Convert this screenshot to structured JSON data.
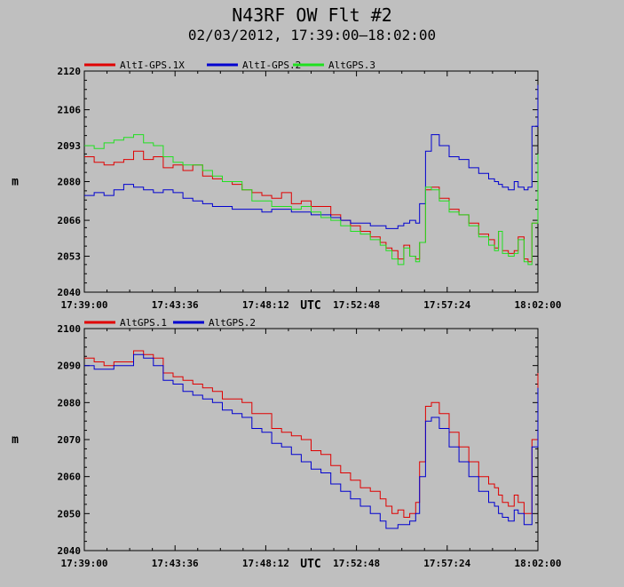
{
  "title": "N43RF OW Flt #2",
  "subtitle": "02/03/2012, 17:39:00–18:02:00",
  "chart_data": [
    {
      "type": "line",
      "ylabel": "m",
      "xlabel": "UTC",
      "ylim": [
        2040,
        2120
      ],
      "yticks": [
        "2040",
        "2053",
        "2066",
        "2080",
        "2093",
        "2106",
        "2120"
      ],
      "xticks": [
        "17:39:00",
        "17:43:36",
        "17:48:12",
        "17:52:48",
        "17:57:24",
        "18:02:00"
      ],
      "xrange_min": [
        0,
        23
      ],
      "series": [
        {
          "name": "AltI-GPS.1X",
          "color": "#e00000",
          "t": [
            0,
            0.5,
            1,
            1.5,
            2,
            2.5,
            3,
            3.5,
            4,
            4.5,
            5,
            5.5,
            6,
            6.5,
            7,
            7.5,
            8,
            8.5,
            9,
            9.5,
            10,
            10.5,
            11,
            11.5,
            12,
            12.5,
            13,
            13.5,
            14,
            14.5,
            15,
            15.3,
            15.6,
            15.9,
            16.2,
            16.5,
            16.8,
            17,
            17.3,
            17.6,
            18,
            18.5,
            19,
            19.5,
            20,
            20.5,
            20.8,
            21,
            21.2,
            21.5,
            21.8,
            22,
            22.3,
            22.5,
            22.7,
            23
          ],
          "y": [
            2089,
            2087,
            2086,
            2087,
            2088,
            2091,
            2088,
            2089,
            2085,
            2086,
            2084,
            2086,
            2082,
            2081,
            2080,
            2079,
            2077,
            2076,
            2075,
            2074,
            2076,
            2072,
            2073,
            2071,
            2071,
            2068,
            2066,
            2064,
            2062,
            2060,
            2058,
            2056,
            2055,
            2052,
            2057,
            2053,
            2052,
            2058,
            2077,
            2078,
            2074,
            2070,
            2068,
            2065,
            2061,
            2059,
            2056,
            2062,
            2055,
            2054,
            2055,
            2060,
            2052,
            2051,
            2065,
            2089
          ]
        },
        {
          "name": "AltI-GPS.2",
          "color": "#0000d0",
          "t": [
            0,
            0.5,
            1,
            1.5,
            2,
            2.5,
            3,
            3.5,
            4,
            4.5,
            5,
            5.5,
            6,
            6.5,
            7,
            7.5,
            8,
            8.5,
            9,
            9.5,
            10,
            10.5,
            11,
            11.5,
            12,
            12.5,
            13,
            13.5,
            14,
            14.5,
            15,
            15.3,
            15.6,
            15.9,
            16.2,
            16.5,
            16.8,
            17,
            17.3,
            17.6,
            18,
            18.5,
            19,
            19.5,
            20,
            20.5,
            20.8,
            21,
            21.2,
            21.5,
            21.8,
            22,
            22.3,
            22.5,
            22.7,
            23
          ],
          "y": [
            2075,
            2076,
            2075,
            2077,
            2079,
            2078,
            2077,
            2076,
            2077,
            2076,
            2074,
            2073,
            2072,
            2071,
            2071,
            2070,
            2070,
            2070,
            2069,
            2070,
            2070,
            2069,
            2069,
            2068,
            2068,
            2067,
            2066,
            2065,
            2065,
            2064,
            2064,
            2063,
            2063,
            2064,
            2065,
            2066,
            2065,
            2072,
            2091,
            2097,
            2093,
            2089,
            2088,
            2085,
            2083,
            2081,
            2080,
            2079,
            2078,
            2077,
            2080,
            2078,
            2077,
            2078,
            2100,
            2115
          ]
        },
        {
          "name": "AltGPS.3",
          "color": "#20e020",
          "t": [
            0,
            0.5,
            1,
            1.5,
            2,
            2.5,
            3,
            3.5,
            4,
            4.5,
            5,
            5.5,
            6,
            6.5,
            7,
            7.5,
            8,
            8.5,
            9,
            9.5,
            10,
            10.5,
            11,
            11.5,
            12,
            12.5,
            13,
            13.5,
            14,
            14.5,
            15,
            15.3,
            15.6,
            15.9,
            16.2,
            16.5,
            16.8,
            17,
            17.3,
            17.6,
            18,
            18.5,
            19,
            19.5,
            20,
            20.5,
            20.8,
            21,
            21.2,
            21.5,
            21.8,
            22,
            22.3,
            22.5,
            22.7,
            23
          ],
          "y": [
            2093,
            2092,
            2094,
            2095,
            2096,
            2097,
            2094,
            2093,
            2089,
            2087,
            2086,
            2086,
            2084,
            2082,
            2080,
            2080,
            2077,
            2073,
            2073,
            2071,
            2071,
            2070,
            2071,
            2069,
            2067,
            2066,
            2064,
            2062,
            2061,
            2059,
            2057,
            2055,
            2052,
            2050,
            2056,
            2053,
            2051,
            2058,
            2078,
            2077,
            2073,
            2069,
            2068,
            2064,
            2060,
            2057,
            2055,
            2062,
            2054,
            2053,
            2054,
            2059,
            2051,
            2050,
            2065,
            2090
          ]
        }
      ]
    },
    {
      "type": "line",
      "ylabel": "m",
      "xlabel": "UTC",
      "ylim": [
        2040,
        2100
      ],
      "yticks": [
        "2040",
        "2050",
        "2060",
        "2070",
        "2080",
        "2090",
        "2100"
      ],
      "xticks": [
        "17:39:00",
        "17:43:36",
        "17:48:12",
        "17:52:48",
        "17:57:24",
        "18:02:00"
      ],
      "xrange_min": [
        0,
        23
      ],
      "series": [
        {
          "name": "AltGPS.1",
          "color": "#e00000",
          "t": [
            0,
            0.5,
            1,
            1.5,
            2,
            2.5,
            3,
            3.5,
            4,
            4.5,
            5,
            5.5,
            6,
            6.5,
            7,
            7.5,
            8,
            8.5,
            9,
            9.5,
            10,
            10.5,
            11,
            11.5,
            12,
            12.5,
            13,
            13.5,
            14,
            14.5,
            15,
            15.3,
            15.6,
            15.9,
            16.2,
            16.5,
            16.8,
            17,
            17.3,
            17.6,
            18,
            18.5,
            19,
            19.5,
            20,
            20.5,
            20.8,
            21,
            21.2,
            21.5,
            21.8,
            22,
            22.3,
            22.5,
            22.7,
            23
          ],
          "y": [
            2092,
            2091,
            2090,
            2091,
            2091,
            2094,
            2093,
            2092,
            2088,
            2087,
            2086,
            2085,
            2084,
            2083,
            2081,
            2081,
            2080,
            2077,
            2077,
            2073,
            2072,
            2071,
            2070,
            2067,
            2066,
            2063,
            2061,
            2059,
            2057,
            2056,
            2054,
            2052,
            2050,
            2051,
            2049,
            2050,
            2053,
            2064,
            2079,
            2080,
            2077,
            2072,
            2068,
            2064,
            2060,
            2058,
            2057,
            2055,
            2053,
            2052,
            2055,
            2053,
            2050,
            2050,
            2070,
            2088
          ]
        },
        {
          "name": "AltGPS.2",
          "color": "#0000d0",
          "t": [
            0,
            0.5,
            1,
            1.5,
            2,
            2.5,
            3,
            3.5,
            4,
            4.5,
            5,
            5.5,
            6,
            6.5,
            7,
            7.5,
            8,
            8.5,
            9,
            9.5,
            10,
            10.5,
            11,
            11.5,
            12,
            12.5,
            13,
            13.5,
            14,
            14.5,
            15,
            15.3,
            15.6,
            15.9,
            16.2,
            16.5,
            16.8,
            17,
            17.3,
            17.6,
            18,
            18.5,
            19,
            19.5,
            20,
            20.5,
            20.8,
            21,
            21.2,
            21.5,
            21.8,
            22,
            22.3,
            22.5,
            22.7,
            23
          ],
          "y": [
            2090,
            2089,
            2089,
            2090,
            2090,
            2093,
            2092,
            2090,
            2086,
            2085,
            2083,
            2082,
            2081,
            2080,
            2078,
            2077,
            2076,
            2073,
            2072,
            2069,
            2068,
            2066,
            2064,
            2062,
            2061,
            2058,
            2056,
            2054,
            2052,
            2050,
            2048,
            2046,
            2046,
            2047,
            2047,
            2048,
            2050,
            2060,
            2075,
            2076,
            2073,
            2068,
            2064,
            2060,
            2056,
            2053,
            2052,
            2050,
            2049,
            2048,
            2051,
            2050,
            2047,
            2047,
            2068,
            2084
          ]
        }
      ]
    }
  ]
}
